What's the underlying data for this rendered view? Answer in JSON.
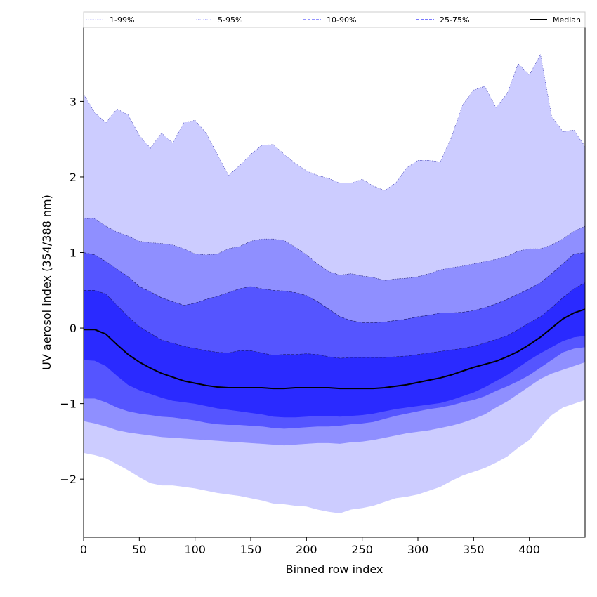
{
  "chart_data": {
    "type": "area",
    "xlabel": "Binned row index",
    "ylabel": "UV aerosol index (354/388 nm)",
    "xlim": [
      0,
      450
    ],
    "ylim": [
      -2.77,
      3.98
    ],
    "xticks": [
      0,
      50,
      100,
      150,
      200,
      250,
      300,
      350,
      400
    ],
    "yticks": [
      -2,
      -1,
      0,
      1,
      2,
      3
    ],
    "legend_position": "top (full-width strip)",
    "grid": false,
    "x": [
      0,
      10,
      20,
      30,
      40,
      50,
      60,
      70,
      80,
      90,
      100,
      110,
      120,
      130,
      140,
      150,
      160,
      170,
      180,
      190,
      200,
      210,
      220,
      230,
      240,
      250,
      260,
      270,
      280,
      290,
      300,
      310,
      320,
      330,
      340,
      350,
      360,
      370,
      380,
      390,
      400,
      410,
      420,
      430,
      440,
      450
    ],
    "bands": [
      {
        "name": "1-99%",
        "color": "#ccccff",
        "upper": [
          3.1,
          2.85,
          2.72,
          2.9,
          2.82,
          2.55,
          2.38,
          2.58,
          2.45,
          2.72,
          2.75,
          2.58,
          2.3,
          2.02,
          2.15,
          2.3,
          2.42,
          2.43,
          2.3,
          2.18,
          2.08,
          2.02,
          1.98,
          1.92,
          1.92,
          1.97,
          1.88,
          1.82,
          1.92,
          2.12,
          2.22,
          2.22,
          2.2,
          2.52,
          2.95,
          3.15,
          3.2,
          2.92,
          3.1,
          3.5,
          3.35,
          3.62,
          2.8,
          2.6,
          2.62,
          2.4
        ],
        "lower": [
          -1.65,
          -1.68,
          -1.72,
          -1.8,
          -1.88,
          -1.97,
          -2.05,
          -2.08,
          -2.08,
          -2.1,
          -2.12,
          -2.15,
          -2.18,
          -2.2,
          -2.22,
          -2.25,
          -2.28,
          -2.32,
          -2.33,
          -2.35,
          -2.36,
          -2.4,
          -2.43,
          -2.45,
          -2.4,
          -2.38,
          -2.35,
          -2.3,
          -2.25,
          -2.23,
          -2.2,
          -2.15,
          -2.1,
          -2.02,
          -1.95,
          -1.9,
          -1.85,
          -1.78,
          -1.7,
          -1.58,
          -1.48,
          -1.3,
          -1.15,
          -1.05,
          -1.0,
          -0.95
        ]
      },
      {
        "name": "5-95%",
        "color": "#8f8fff",
        "upper": [
          1.45,
          1.45,
          1.35,
          1.27,
          1.22,
          1.15,
          1.13,
          1.12,
          1.1,
          1.05,
          0.98,
          0.97,
          0.98,
          1.05,
          1.08,
          1.15,
          1.18,
          1.18,
          1.16,
          1.07,
          0.97,
          0.85,
          0.75,
          0.7,
          0.72,
          0.69,
          0.67,
          0.63,
          0.65,
          0.66,
          0.68,
          0.72,
          0.77,
          0.8,
          0.82,
          0.85,
          0.88,
          0.91,
          0.95,
          1.02,
          1.05,
          1.05,
          1.1,
          1.18,
          1.28,
          1.35
        ],
        "lower": [
          -1.23,
          -1.26,
          -1.3,
          -1.35,
          -1.38,
          -1.4,
          -1.42,
          -1.44,
          -1.45,
          -1.46,
          -1.47,
          -1.48,
          -1.49,
          -1.5,
          -1.51,
          -1.52,
          -1.53,
          -1.54,
          -1.55,
          -1.54,
          -1.53,
          -1.52,
          -1.52,
          -1.53,
          -1.51,
          -1.5,
          -1.48,
          -1.45,
          -1.42,
          -1.39,
          -1.37,
          -1.35,
          -1.32,
          -1.29,
          -1.25,
          -1.2,
          -1.14,
          -1.05,
          -0.97,
          -0.87,
          -0.77,
          -0.67,
          -0.6,
          -0.55,
          -0.5,
          -0.45
        ]
      },
      {
        "name": "10-90%",
        "color": "#5555ff",
        "upper": [
          1.0,
          0.97,
          0.88,
          0.78,
          0.68,
          0.55,
          0.48,
          0.4,
          0.35,
          0.3,
          0.33,
          0.38,
          0.42,
          0.47,
          0.52,
          0.55,
          0.52,
          0.5,
          0.49,
          0.47,
          0.43,
          0.35,
          0.25,
          0.15,
          0.1,
          0.07,
          0.07,
          0.08,
          0.1,
          0.12,
          0.15,
          0.17,
          0.2,
          0.2,
          0.21,
          0.23,
          0.27,
          0.32,
          0.38,
          0.45,
          0.52,
          0.6,
          0.72,
          0.85,
          0.98,
          1.0
        ],
        "lower": [
          -0.93,
          -0.93,
          -0.98,
          -1.05,
          -1.1,
          -1.13,
          -1.15,
          -1.17,
          -1.18,
          -1.2,
          -1.22,
          -1.25,
          -1.27,
          -1.28,
          -1.28,
          -1.29,
          -1.3,
          -1.32,
          -1.33,
          -1.32,
          -1.31,
          -1.3,
          -1.3,
          -1.29,
          -1.27,
          -1.26,
          -1.24,
          -1.2,
          -1.16,
          -1.13,
          -1.1,
          -1.07,
          -1.05,
          -1.02,
          -0.98,
          -0.95,
          -0.9,
          -0.83,
          -0.77,
          -0.7,
          -0.62,
          -0.52,
          -0.42,
          -0.32,
          -0.27,
          -0.25
        ]
      },
      {
        "name": "25-75%",
        "color": "#2a2aff",
        "upper": [
          0.5,
          0.5,
          0.45,
          0.3,
          0.15,
          0.02,
          -0.07,
          -0.16,
          -0.2,
          -0.24,
          -0.27,
          -0.3,
          -0.32,
          -0.33,
          -0.3,
          -0.3,
          -0.33,
          -0.36,
          -0.35,
          -0.35,
          -0.34,
          -0.35,
          -0.38,
          -0.4,
          -0.39,
          -0.39,
          -0.39,
          -0.39,
          -0.38,
          -0.37,
          -0.35,
          -0.33,
          -0.31,
          -0.29,
          -0.27,
          -0.24,
          -0.2,
          -0.15,
          -0.1,
          -0.02,
          0.07,
          0.15,
          0.27,
          0.4,
          0.52,
          0.6
        ],
        "lower": [
          -0.42,
          -0.43,
          -0.5,
          -0.63,
          -0.75,
          -0.82,
          -0.87,
          -0.92,
          -0.96,
          -0.98,
          -1.0,
          -1.03,
          -1.06,
          -1.08,
          -1.1,
          -1.12,
          -1.14,
          -1.17,
          -1.18,
          -1.18,
          -1.17,
          -1.16,
          -1.16,
          -1.17,
          -1.16,
          -1.15,
          -1.13,
          -1.1,
          -1.07,
          -1.05,
          -1.03,
          -1.01,
          -0.99,
          -0.95,
          -0.9,
          -0.85,
          -0.78,
          -0.7,
          -0.62,
          -0.52,
          -0.42,
          -0.33,
          -0.25,
          -0.17,
          -0.12,
          -0.1
        ]
      }
    ],
    "series": [
      {
        "name": "Median",
        "color": "#000000",
        "values": [
          -0.02,
          -0.02,
          -0.08,
          -0.22,
          -0.35,
          -0.45,
          -0.53,
          -0.6,
          -0.65,
          -0.7,
          -0.73,
          -0.76,
          -0.78,
          -0.79,
          -0.79,
          -0.79,
          -0.79,
          -0.8,
          -0.8,
          -0.79,
          -0.79,
          -0.79,
          -0.79,
          -0.8,
          -0.8,
          -0.8,
          -0.8,
          -0.79,
          -0.77,
          -0.75,
          -0.72,
          -0.69,
          -0.66,
          -0.62,
          -0.57,
          -0.52,
          -0.48,
          -0.44,
          -0.38,
          -0.31,
          -0.22,
          -0.12,
          0.0,
          0.12,
          0.2,
          0.25
        ]
      }
    ],
    "legend": [
      {
        "label": "1-99%",
        "color": "#ccccff",
        "style": "dotted"
      },
      {
        "label": "5-95%",
        "color": "#8f8fff",
        "style": "dotted"
      },
      {
        "label": "10-90%",
        "color": "#5555ff",
        "style": "dashed"
      },
      {
        "label": "25-75%",
        "color": "#2a2aff",
        "style": "dashed"
      },
      {
        "label": "Median",
        "color": "#000000",
        "style": "solid"
      }
    ]
  }
}
